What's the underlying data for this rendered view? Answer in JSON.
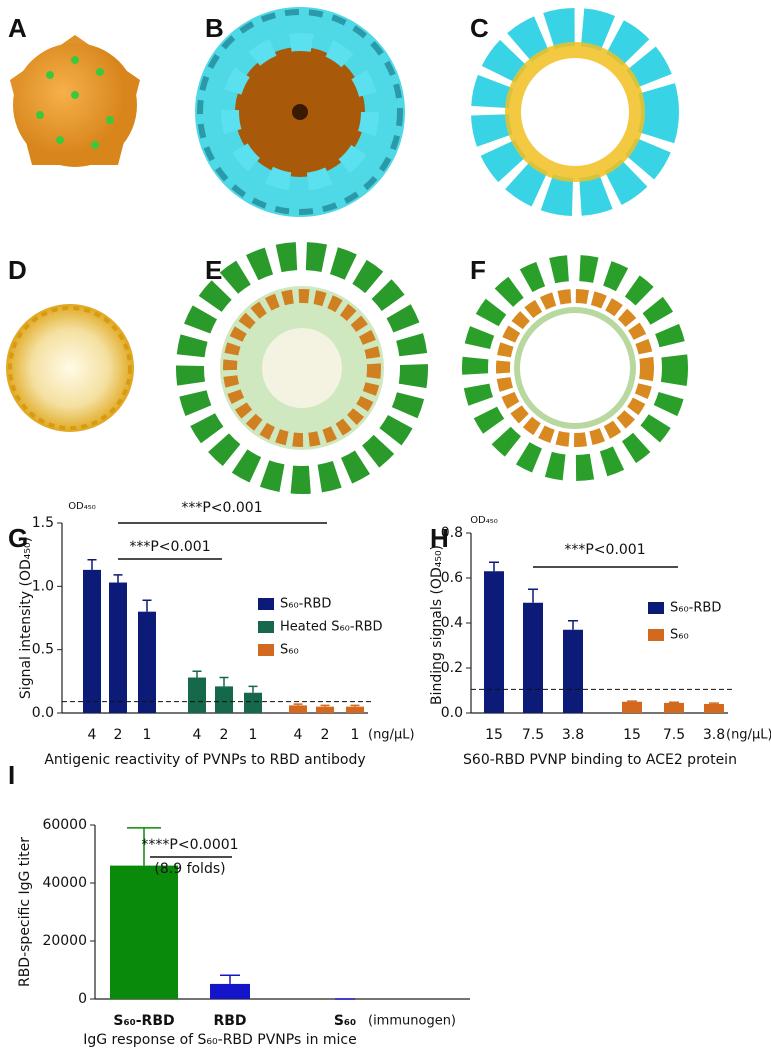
{
  "panel_labels": [
    "A",
    "B",
    "C",
    "D",
    "E",
    "F",
    "G",
    "H",
    "I"
  ],
  "chart_data": [
    {
      "type": "bar",
      "axis_note": "OD₄₅₀",
      "y_label": "Signal intensity (OD₄₅₀)",
      "x_label": "Antigenic reactivity of PVNPs to RBD antibody",
      "x_unit": "(ng/μL)",
      "categories": [
        "4",
        "2",
        "1",
        "4",
        "2",
        "1",
        "4",
        "2",
        "1"
      ],
      "series": [
        {
          "name": "S₆₀-RBD",
          "color": "#0c1a78",
          "values": [
            1.13,
            1.03,
            0.8,
            null,
            null,
            null,
            null,
            null,
            null
          ],
          "errors": [
            0.08,
            0.06,
            0.09,
            null,
            null,
            null,
            null,
            null,
            null
          ]
        },
        {
          "name": "Heated S₆₀-RBD",
          "color": "#16684a",
          "values": [
            null,
            null,
            null,
            0.28,
            0.21,
            0.16,
            null,
            null,
            null
          ],
          "errors": [
            null,
            null,
            null,
            0.05,
            0.07,
            0.05,
            null,
            null,
            null
          ]
        },
        {
          "name": "S₆₀",
          "color": "#d2691e",
          "values": [
            null,
            null,
            null,
            null,
            null,
            null,
            0.06,
            0.05,
            0.05
          ],
          "errors": [
            null,
            null,
            null,
            null,
            null,
            null,
            0.01,
            0.01,
            0.01
          ]
        }
      ],
      "reference_line": 0.09,
      "annotations": [
        "***P<0.001",
        "***P<0.001"
      ],
      "ylim": [
        0,
        1.5
      ],
      "yticks": [
        {
          "value": 0,
          "label": "0.0"
        },
        0.5,
        {
          "value": 1,
          "label": "1.0"
        },
        1.5
      ]
    },
    {
      "type": "bar",
      "axis_note": "OD₄₅₀",
      "y_label": "Binding signals (OD₄₅₀)",
      "x_label": "S60-RBD PVNP binding to ACE2 protein",
      "x_unit": "(ng/μL)",
      "categories": [
        "15",
        "7.5",
        "3.8",
        "15",
        "7.5",
        "3.8"
      ],
      "series": [
        {
          "name": "S₆₀-RBD",
          "color": "#0c1a78",
          "values": [
            0.63,
            0.49,
            0.37,
            null,
            null,
            null
          ],
          "errors": [
            0.04,
            0.06,
            0.04,
            null,
            null,
            null
          ]
        },
        {
          "name": "S₆₀",
          "color": "#d2691e",
          "values": [
            null,
            null,
            null,
            0.05,
            0.045,
            0.04
          ],
          "errors": [
            null,
            null,
            null,
            0.003,
            0.003,
            0.004
          ]
        }
      ],
      "reference_line": 0.105,
      "annotations": [
        "***P<0.001"
      ],
      "ylim": [
        0,
        0.8
      ],
      "yticks": [
        {
          "value": 0,
          "label": "0.0"
        },
        0.2,
        0.4,
        0.6,
        0.8
      ]
    },
    {
      "type": "bar",
      "y_label": "RBD-specific  IgG titer",
      "x_label": "IgG response of S₆₀-RBD PVNPs in mice",
      "x_unit": "(immunogen)",
      "categories": [
        "S₆₀-RBD",
        "RBD",
        "S₆₀"
      ],
      "series": [
        {
          "colors": [
            "#0a8a0a",
            "#1414c8",
            "#1414c8"
          ],
          "values": [
            46000,
            5200,
            0
          ],
          "errors": [
            13000,
            3000,
            0
          ]
        }
      ],
      "annotations": [
        "****P<0.0001",
        "(8.9 folds)"
      ],
      "ylim": [
        0,
        60000
      ],
      "yticks": [
        0,
        20000,
        40000,
        60000
      ]
    }
  ]
}
